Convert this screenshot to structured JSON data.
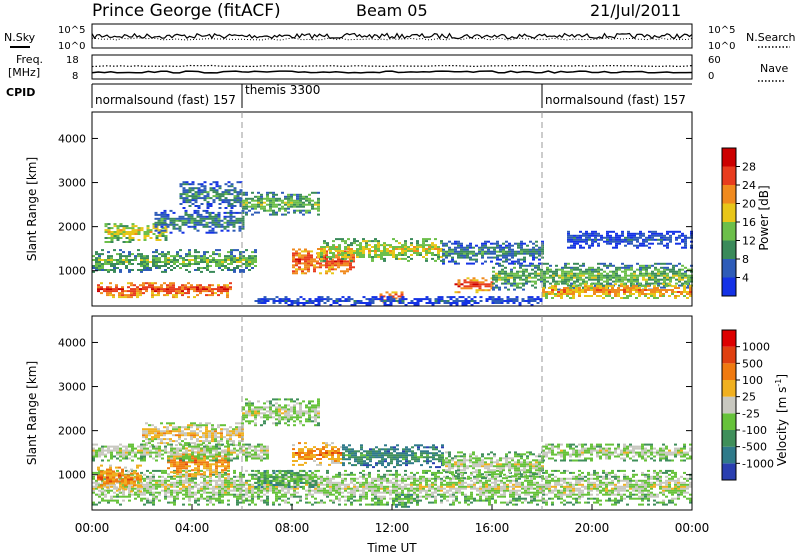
{
  "header": {
    "station": "Prince George (fitACF)",
    "beam": "Beam 05",
    "date": "21/Jul/2011"
  },
  "summary": {
    "nsky_label": "N.Sky",
    "nsearch_label": "N.Search",
    "freq_label_1": "Freq.",
    "freq_label_2": "[MHz]",
    "nave_label": "Nave",
    "cpid_label": "CPID",
    "noise_ticks_left": [
      "10^5",
      "10^0"
    ],
    "noise_ticks_right": [
      "10^5",
      "10^0"
    ],
    "freq_ticks": [
      "18",
      "8"
    ],
    "nave_ticks": [
      "60",
      "0"
    ],
    "cpid_segments": [
      {
        "label": "normalsound (fast) 157",
        "start_h": 0,
        "end_h": 6
      },
      {
        "label": "themis 3300",
        "start_h": 6,
        "end_h": 18
      },
      {
        "label": "normalsound (fast) 157",
        "start_h": 18,
        "end_h": 24
      }
    ]
  },
  "chart_data": [
    {
      "type": "heatmap",
      "name": "power",
      "ylabel": "Slant Range [km]",
      "yticks": [
        "1000",
        "2000",
        "3000",
        "4000"
      ],
      "ylim": [
        200,
        4600
      ],
      "xlim": [
        0,
        24
      ],
      "colorbar_label": "Power [dB]",
      "colorbar_ticks": [
        "4",
        "8",
        "12",
        "16",
        "20",
        "24",
        "28"
      ],
      "colors": [
        "#1432e6",
        "#2e5cb8",
        "#3a8a5a",
        "#6cbf4a",
        "#e8c619",
        "#f08a1e",
        "#e83c1e",
        "#cc0000"
      ],
      "echo_bands": [
        {
          "t0": 0.2,
          "t1": 5.5,
          "r": 560,
          "w": 180,
          "level": 6
        },
        {
          "t0": 0.0,
          "t1": 6.5,
          "r": 1200,
          "w": 250,
          "level": 3
        },
        {
          "t0": 0.5,
          "t1": 3.0,
          "r": 1850,
          "w": 220,
          "level": 4
        },
        {
          "t0": 2.5,
          "t1": 6.0,
          "r": 2100,
          "w": 260,
          "level": 2
        },
        {
          "t0": 3.5,
          "t1": 6.0,
          "r": 2700,
          "w": 300,
          "level": 2
        },
        {
          "t0": 6.0,
          "t1": 9.0,
          "r": 2500,
          "w": 250,
          "level": 3
        },
        {
          "t0": 8.0,
          "t1": 10.5,
          "r": 1200,
          "w": 280,
          "level": 6
        },
        {
          "t0": 9.0,
          "t1": 14.0,
          "r": 1450,
          "w": 250,
          "level": 4
        },
        {
          "t0": 11.5,
          "t1": 12.5,
          "r": 380,
          "w": 120,
          "level": 6
        },
        {
          "t0": 14.5,
          "t1": 16.0,
          "r": 650,
          "w": 160,
          "level": 6
        },
        {
          "t0": 16.0,
          "t1": 24.0,
          "r": 850,
          "w": 300,
          "level": 3
        },
        {
          "t0": 18.0,
          "t1": 24.0,
          "r": 520,
          "w": 160,
          "level": 5
        },
        {
          "t0": 14.0,
          "t1": 18.0,
          "r": 1400,
          "w": 260,
          "level": 2
        },
        {
          "t0": 19.0,
          "t1": 24.0,
          "r": 1700,
          "w": 200,
          "level": 1
        },
        {
          "t0": 6.5,
          "t1": 18.0,
          "r": 300,
          "w": 100,
          "level": 1
        }
      ]
    },
    {
      "type": "heatmap",
      "name": "velocity",
      "ylabel": "Slant Range [km]",
      "xlabel": "Time UT",
      "yticks": [
        "1000",
        "2000",
        "3000",
        "4000"
      ],
      "ylim": [
        200,
        4600
      ],
      "xlim": [
        0,
        24
      ],
      "xticks": [
        "00:00",
        "04:00",
        "08:00",
        "12:00",
        "16:00",
        "20:00",
        "00:00"
      ],
      "colorbar_label_main": "Velocity",
      "colorbar_label_unit": "[m s",
      "colorbar_label_sup": "-1",
      "colorbar_ticks": [
        "1000",
        "500",
        "100",
        "25",
        "-25",
        "-100",
        "-500",
        "-1000"
      ],
      "colors": [
        "#2a3fb0",
        "#2f7a8a",
        "#3f8f5a",
        "#66c23a",
        "#c8c8c0",
        "#f0b020",
        "#f07a10",
        "#e04010",
        "#dd0000"
      ],
      "echo_bands": [
        {
          "t0": 0.0,
          "t1": 24.0,
          "r": 700,
          "w": 400,
          "level": 4
        },
        {
          "t0": 0.2,
          "t1": 2.0,
          "r": 900,
          "w": 300,
          "level": 6
        },
        {
          "t0": 3.0,
          "t1": 5.5,
          "r": 1250,
          "w": 350,
          "level": 6
        },
        {
          "t0": 2.0,
          "t1": 6.0,
          "r": 1900,
          "w": 250,
          "level": 5
        },
        {
          "t0": 0.0,
          "t1": 7.0,
          "r": 1500,
          "w": 200,
          "level": 4
        },
        {
          "t0": 6.0,
          "t1": 9.0,
          "r": 2400,
          "w": 300,
          "level": 4
        },
        {
          "t0": 8.0,
          "t1": 10.0,
          "r": 1450,
          "w": 250,
          "level": 6
        },
        {
          "t0": 10.0,
          "t1": 14.0,
          "r": 1400,
          "w": 250,
          "level": 2
        },
        {
          "t0": 12.0,
          "t1": 13.0,
          "r": 400,
          "w": 150,
          "level": 3
        },
        {
          "t0": 14.0,
          "t1": 18.0,
          "r": 1200,
          "w": 300,
          "level": 4
        },
        {
          "t0": 18.0,
          "t1": 24.0,
          "r": 1500,
          "w": 200,
          "level": 4
        },
        {
          "t0": 6.5,
          "t1": 9.0,
          "r": 900,
          "w": 200,
          "level": 3
        }
      ]
    }
  ]
}
